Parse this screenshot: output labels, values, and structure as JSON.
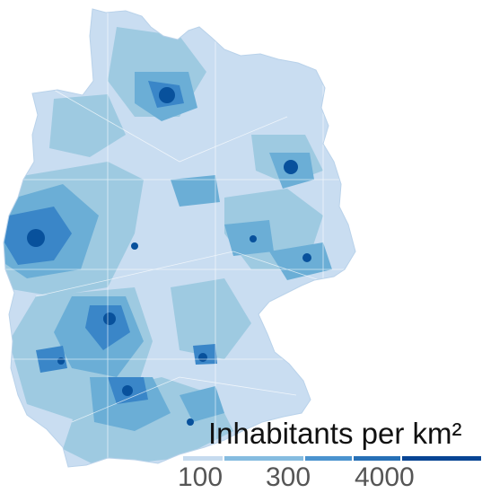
{
  "legend": {
    "title": "Inhabitants per km²",
    "labels": [
      "100",
      "300",
      "4000"
    ],
    "colors": [
      "#c6dbef",
      "#85bce0",
      "#4a93cf",
      "#2770b6",
      "#084594"
    ]
  },
  "map": {
    "region": "Germany",
    "fill_colors": {
      "lightest": "#c9ddf1",
      "light": "#9ecae1",
      "medium": "#6baed6",
      "dark": "#3a86c8",
      "darkest": "#08519c"
    }
  }
}
